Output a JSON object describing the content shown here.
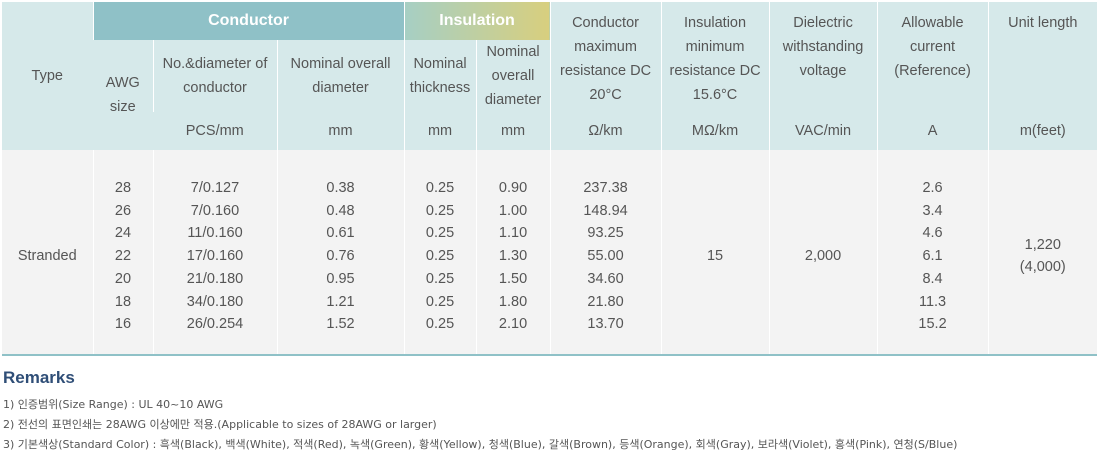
{
  "header": {
    "type": "Type",
    "conductor_group": "Conductor",
    "insulation_group": "Insulation",
    "awg": "AWG size",
    "pcs_dia": "No.&diameter of conductor",
    "pcs_unit": "PCS/mm",
    "cond_overall": "Nominal overall diameter",
    "cond_overall_unit": "mm",
    "ins_thick": "Nominal thickness",
    "ins_thick_unit": "mm",
    "ins_overall": "Nominal overall diameter",
    "ins_overall_unit": "mm",
    "cond_res": "Conductor maximum resistance DC 20°C",
    "cond_res_unit": "Ω/km",
    "ins_res": "Insulation minimum resistance DC 15.6°C",
    "ins_res_unit": "MΩ/km",
    "dielectric": "Dielectric withstanding voltage",
    "dielectric_unit": "VAC/min",
    "current": "Allowable current (Reference)",
    "current_unit": "A",
    "unit_len": "Unit length",
    "unit_len_unit": "m(feet)"
  },
  "body": {
    "type": "Stranded",
    "awg": [
      "28",
      "26",
      "24",
      "22",
      "20",
      "18",
      "16"
    ],
    "pcs": [
      "7/0.127",
      "7/0.160",
      "11/0.160",
      "17/0.160",
      "21/0.180",
      "34/0.180",
      "26/0.254"
    ],
    "cond_overall": [
      "0.38",
      "0.48",
      "0.61",
      "0.76",
      "0.95",
      "1.21",
      "1.52"
    ],
    "ins_thick": [
      "0.25",
      "0.25",
      "0.25",
      "0.25",
      "0.25",
      "0.25",
      "0.25"
    ],
    "ins_overall": [
      "0.90",
      "1.00",
      "1.10",
      "1.30",
      "1.50",
      "1.80",
      "2.10"
    ],
    "cond_res": [
      "237.38",
      "148.94",
      "93.25",
      "55.00",
      "34.60",
      "21.80",
      "13.70"
    ],
    "ins_res": "15",
    "dielectric": "2,000",
    "current": [
      "2.6",
      "3.4",
      "4.6",
      "6.1",
      "8.4",
      "11.3",
      "15.2"
    ],
    "unit_len": [
      "1,220",
      "(4,000)"
    ]
  },
  "remarks": {
    "title": "Remarks",
    "items": [
      "1) 인증범위(Size Range) : UL 40~10 AWG",
      "2) 전선의 표면인쇄는 28AWG 이상에만 적용.(Applicable to sizes of 28AWG or larger)",
      "3) 기본색상(Standard Color) : 흑색(Black), 백색(White), 적색(Red), 녹색(Green), 황색(Yellow), 청색(Blue), 갈색(Brown), 등색(Orange), 회색(Gray), 보라색(Violet), 홍색(Pink), 연청(S/Blue)"
    ]
  }
}
